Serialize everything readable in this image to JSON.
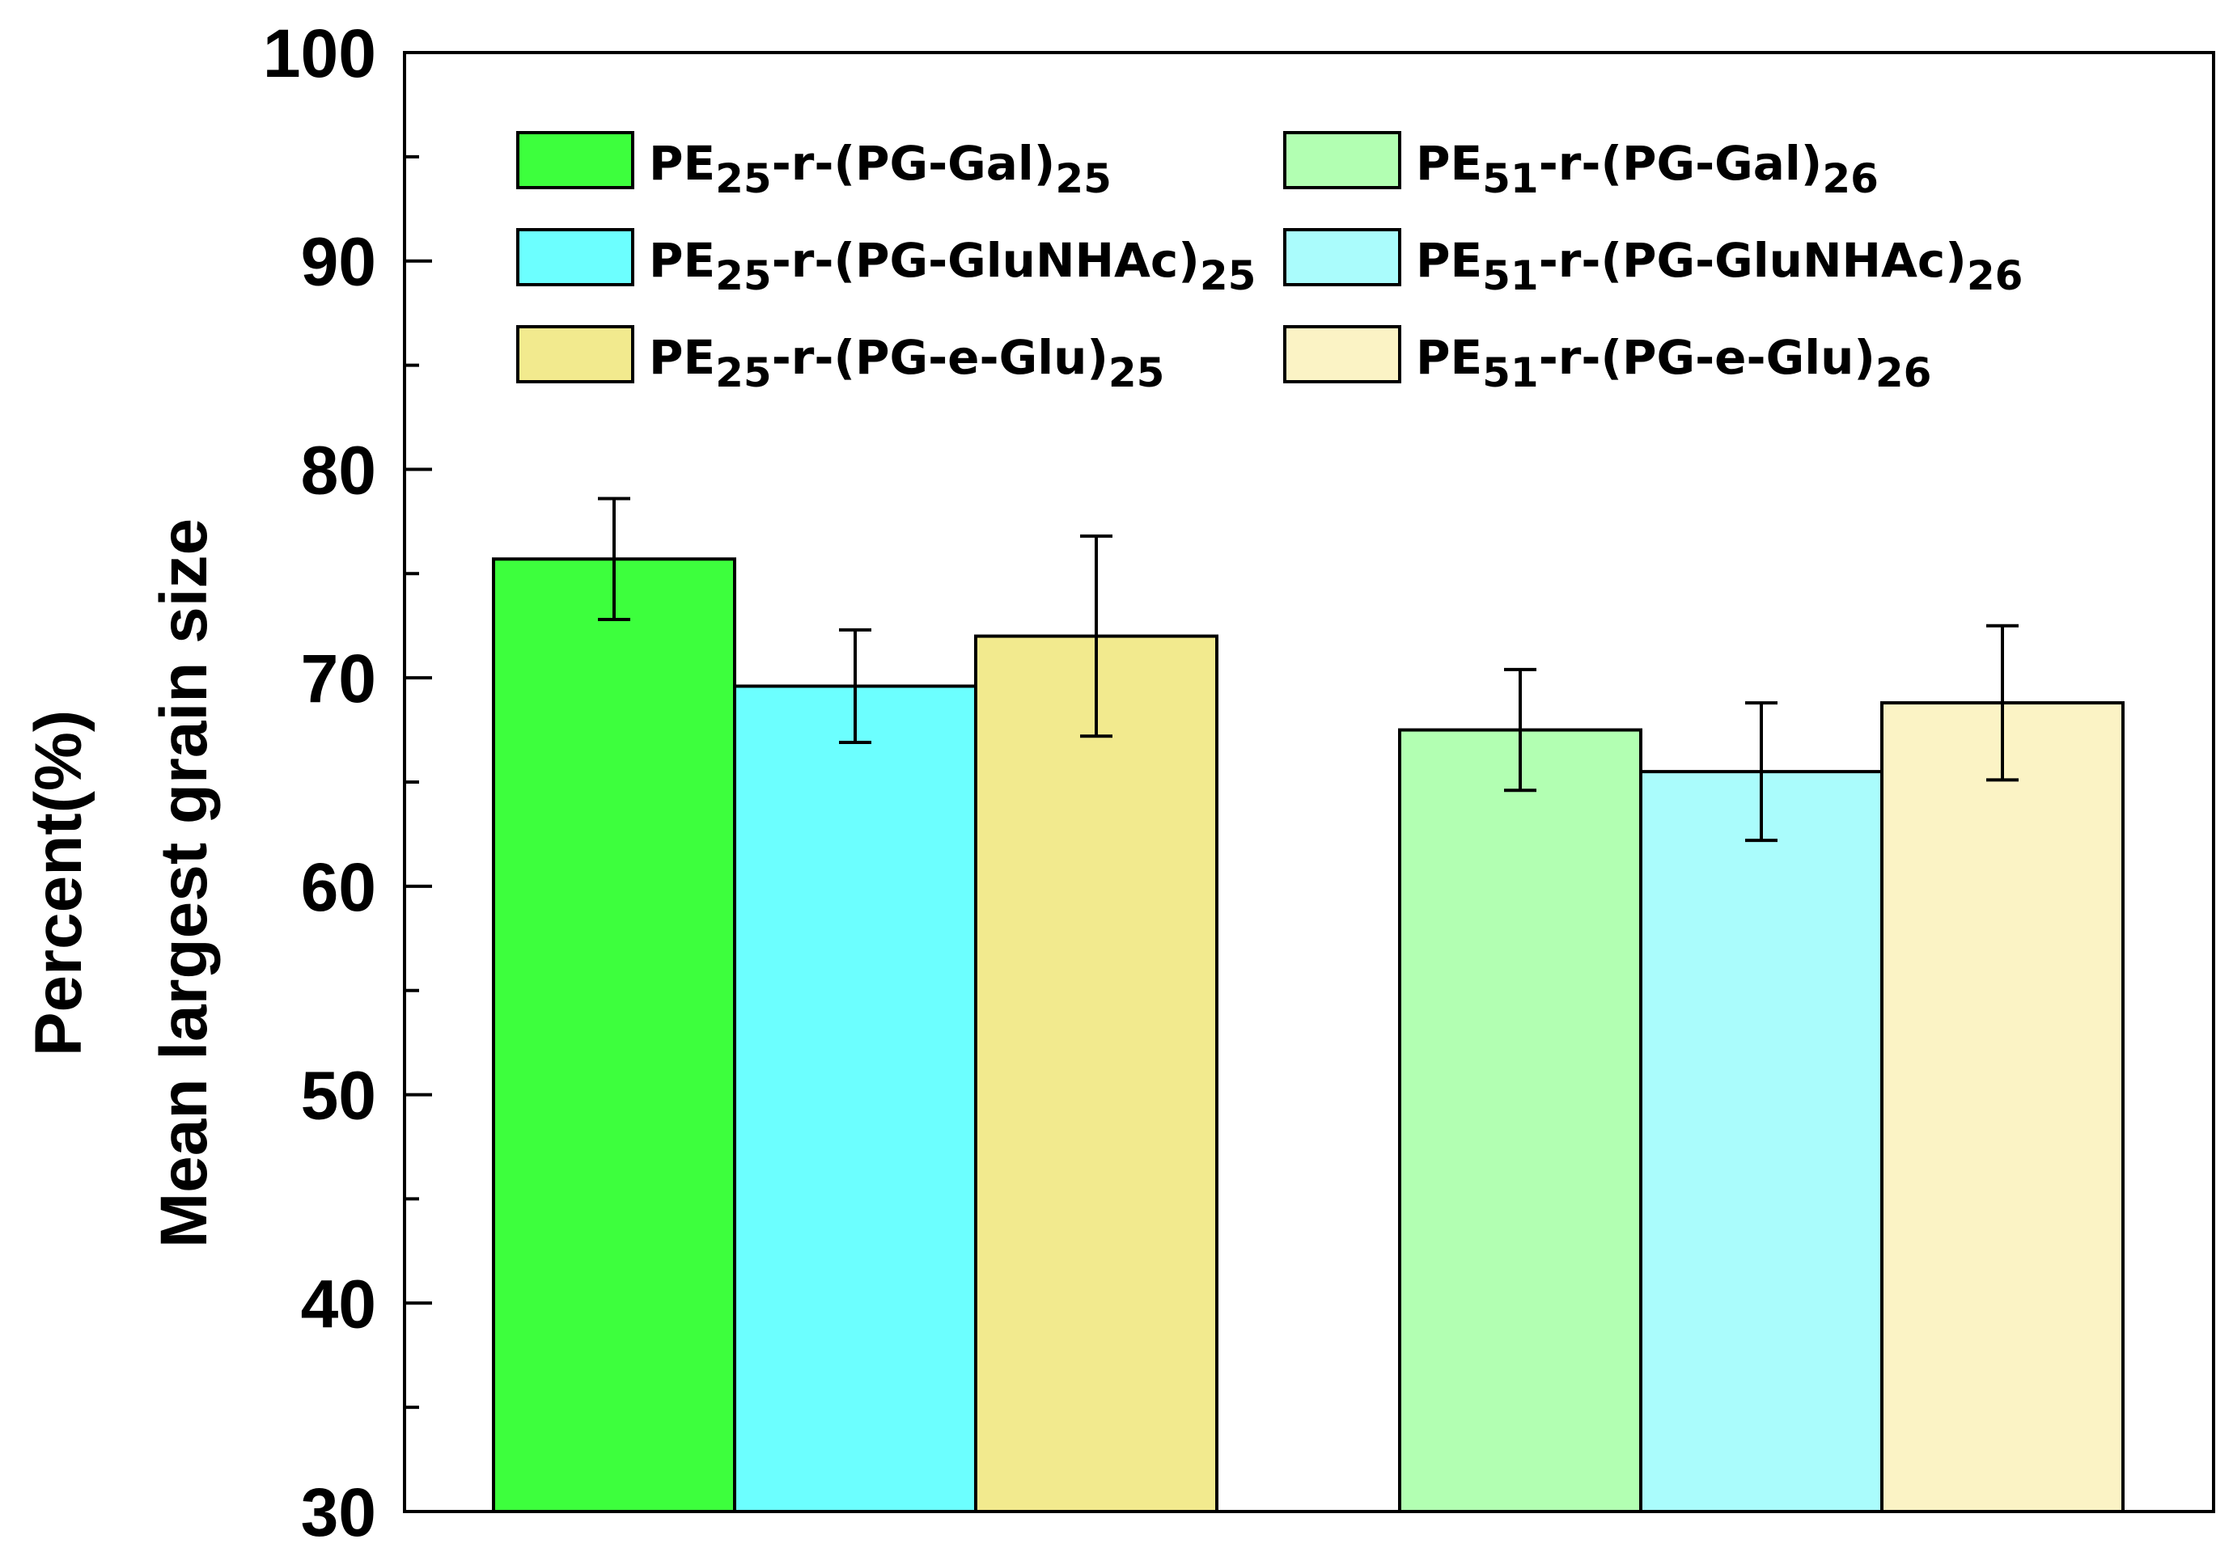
{
  "chart_data": {
    "type": "bar",
    "title": "",
    "xlabel": "",
    "ylabel": "Percent(%)",
    "ylabel_line2": "Mean largest grain size",
    "ylim": [
      30,
      100
    ],
    "yticks": [
      "30",
      "40",
      "50",
      "60",
      "70",
      "80",
      "90",
      "100"
    ],
    "grid": false,
    "legend_position": "top",
    "series": [
      {
        "name": "PE25-r-(PG-Gal)25",
        "label_main": "PE",
        "sub1": "25",
        "mid": "-r-(PG-Gal)",
        "sub2": "25",
        "group": 0,
        "value": 75.7,
        "error": 2.9,
        "color": "#3dff3d"
      },
      {
        "name": "PE25-r-(PG-GluNHAc)25",
        "label_main": "PE",
        "sub1": "25",
        "mid": "-r-(PG-GluNHAc)",
        "sub2": "25",
        "group": 0,
        "value": 69.6,
        "error": 2.7,
        "color": "#6cffff"
      },
      {
        "name": "PE25-r-(PG-e-Glu)25",
        "label_main": "PE",
        "sub1": "25",
        "mid": "-r-(PG-e-Glu)",
        "sub2": "25",
        "group": 0,
        "value": 72.0,
        "error": 4.8,
        "color": "#f2ea8e"
      },
      {
        "name": "PE51-r-(PG-Gal)26",
        "label_main": "PE",
        "sub1": "51",
        "mid": "-r-(PG-Gal)",
        "sub2": "26",
        "group": 1,
        "value": 67.5,
        "error": 2.9,
        "color": "#b2ffb2"
      },
      {
        "name": "PE51-r-(PG-GluNHAc)26",
        "label_main": "PE",
        "sub1": "51",
        "mid": "-r-(PG-GluNHAc)",
        "sub2": "26",
        "group": 1,
        "value": 65.5,
        "error": 3.3,
        "color": "#aafcfc"
      },
      {
        "name": "PE51-r-(PG-e-Glu)26",
        "label_main": "PE",
        "sub1": "51",
        "mid": "-r-(PG-e-Glu)",
        "sub2": "26",
        "group": 1,
        "value": 68.8,
        "error": 3.7,
        "color": "#fbf3c5"
      }
    ]
  }
}
